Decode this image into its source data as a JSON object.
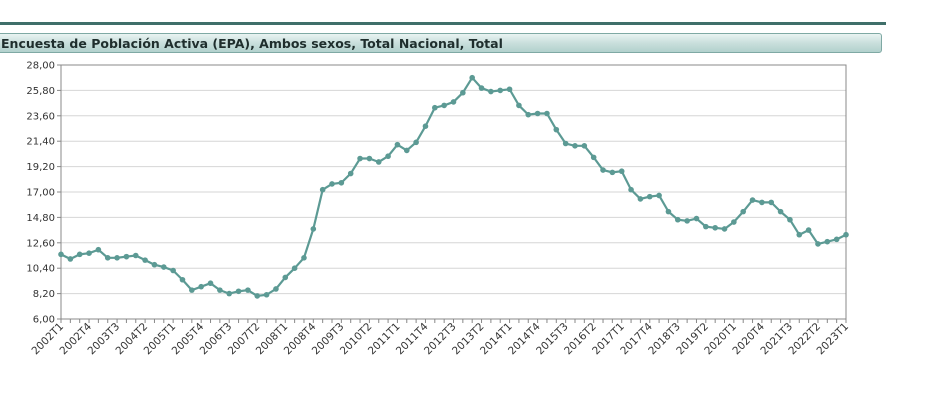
{
  "chart_data": {
    "type": "line",
    "title": "Encuesta de Población Activa (EPA), Ambos sexos, Total Nacional, Total",
    "xlabel": "",
    "ylabel": "",
    "ylim": [
      6,
      28
    ],
    "y_ticks": [
      "6,00",
      "8,20",
      "10,40",
      "12,60",
      "14,80",
      "17,00",
      "19,20",
      "21,40",
      "23,60",
      "25,80",
      "28,00"
    ],
    "x_tick_labels": [
      "2002T1",
      "2002T4",
      "2003T3",
      "2004T2",
      "2005T1",
      "2005T4",
      "2006T3",
      "2007T2",
      "2008T1",
      "2008T4",
      "2009T3",
      "2010T2",
      "2011T1",
      "2011T4",
      "2012T3",
      "2013T2",
      "2014T1",
      "2014T4",
      "2015T3",
      "2016T2",
      "2017T1",
      "2017T4",
      "2018T3",
      "2019T2",
      "2020T1",
      "2020T4",
      "2021T3",
      "2022T2",
      "2023T1"
    ],
    "grid": true,
    "line_color": "#5c9a94",
    "values": [
      11.6,
      11.2,
      11.6,
      11.7,
      12.0,
      11.3,
      11.3,
      11.4,
      11.5,
      11.1,
      10.7,
      10.5,
      10.2,
      9.4,
      8.5,
      8.8,
      9.1,
      8.5,
      8.2,
      8.4,
      8.5,
      8.0,
      8.1,
      8.6,
      9.6,
      10.4,
      11.3,
      13.8,
      17.2,
      17.7,
      17.8,
      18.6,
      19.9,
      19.9,
      19.6,
      20.1,
      21.1,
      20.6,
      21.3,
      22.7,
      24.3,
      24.5,
      24.8,
      25.6,
      26.9,
      26.0,
      25.7,
      25.8,
      25.9,
      24.5,
      23.7,
      23.8,
      23.8,
      22.4,
      21.2,
      21.0,
      21.0,
      20.0,
      18.9,
      18.7,
      18.8,
      17.2,
      16.4,
      16.6,
      16.7,
      15.3,
      14.6,
      14.5,
      14.7,
      14.0,
      13.9,
      13.8,
      14.4,
      15.3,
      16.3,
      16.1,
      16.1,
      15.3,
      14.6,
      13.3,
      13.7,
      12.5,
      12.7,
      12.9,
      13.3
    ]
  }
}
